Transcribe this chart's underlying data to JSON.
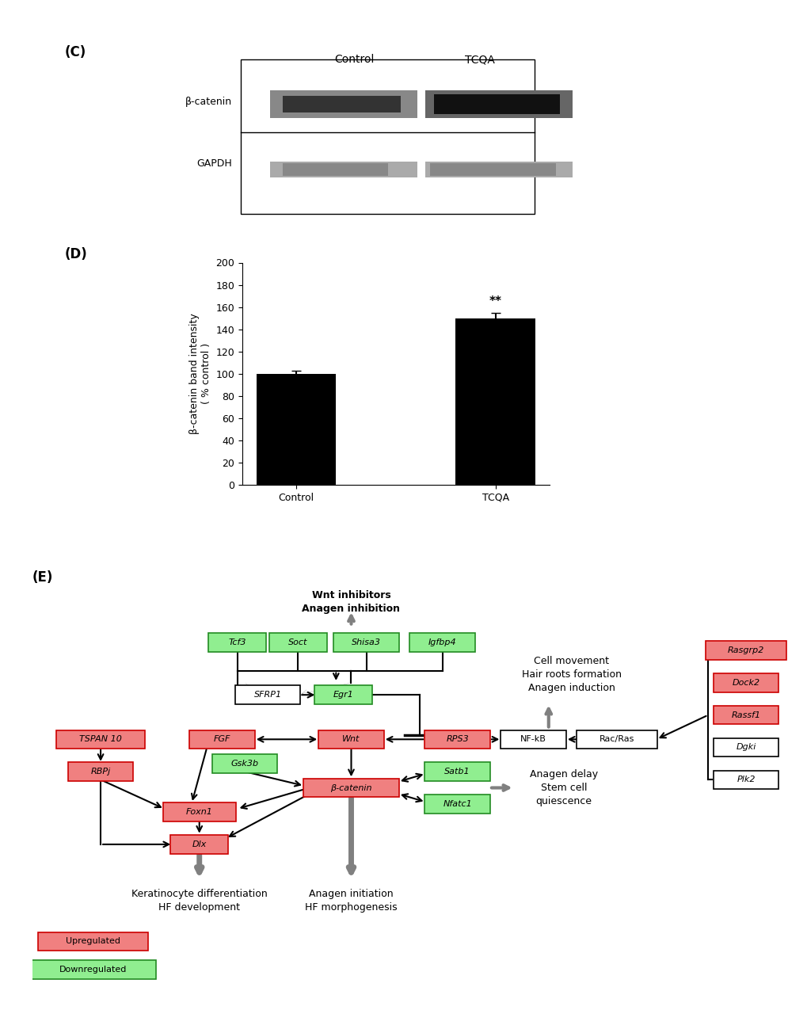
{
  "bar_values": [
    100,
    150
  ],
  "bar_errors": [
    3,
    5
  ],
  "bar_labels": [
    "Control",
    "TCQA"
  ],
  "bar_color": "#000000",
  "ylabel": "β-catenin band intensity\n( % control )",
  "ylim": [
    0,
    200
  ],
  "yticks": [
    0,
    20,
    40,
    60,
    80,
    100,
    120,
    140,
    160,
    180,
    200
  ],
  "panel_C_label": "(C)",
  "panel_D_label": "(D)",
  "panel_E_label": "(E)",
  "bg_color": "#ffffff",
  "upregulated_color": "#f08080",
  "downregulated_color": "#90ee90",
  "upregulated_edge": "#cc0000",
  "downregulated_edge": "#228B22",
  "neutral_color": "#ffffff",
  "neutral_edge": "#000000"
}
